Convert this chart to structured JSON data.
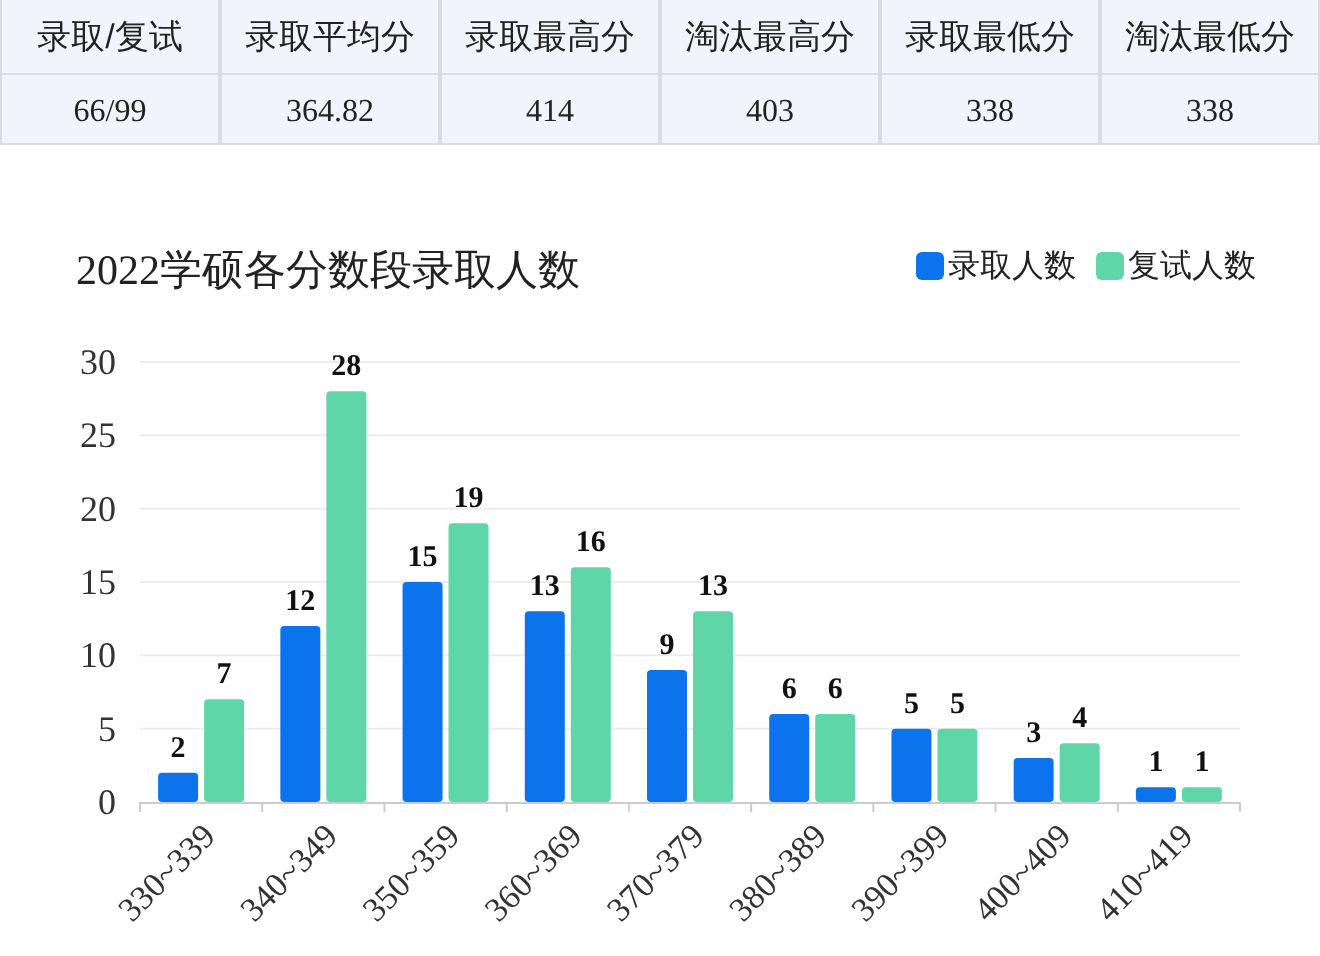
{
  "chart_data": [
    {
      "type": "other",
      "categories": [
        "录取/复试",
        "录取平均分",
        "录取最高分",
        "淘汰最高分",
        "录取最低分",
        "淘汰最低分"
      ],
      "annotations": [
        "66/99",
        "364.82",
        "414",
        "403",
        "338",
        "338"
      ]
    },
    {
      "type": "bar",
      "title": "2022学硕各分数段录取人数",
      "categories": [
        "330~339",
        "340~349",
        "350~359",
        "360~369",
        "370~379",
        "380~389",
        "390~399",
        "400~409",
        "410~419"
      ],
      "series": [
        {
          "name": "录取人数",
          "color": "#0b74ec",
          "values": [
            2,
            12,
            15,
            13,
            9,
            6,
            5,
            3,
            1
          ]
        },
        {
          "name": "复试人数",
          "color": "#5ed6a8",
          "values": [
            7,
            28,
            19,
            16,
            13,
            6,
            5,
            4,
            1
          ]
        }
      ],
      "ylim": [
        0,
        30
      ],
      "yticks": [
        0,
        5,
        10,
        15,
        20,
        25,
        30
      ],
      "grid": "y",
      "legend": "top right",
      "data_labels": true
    }
  ]
}
